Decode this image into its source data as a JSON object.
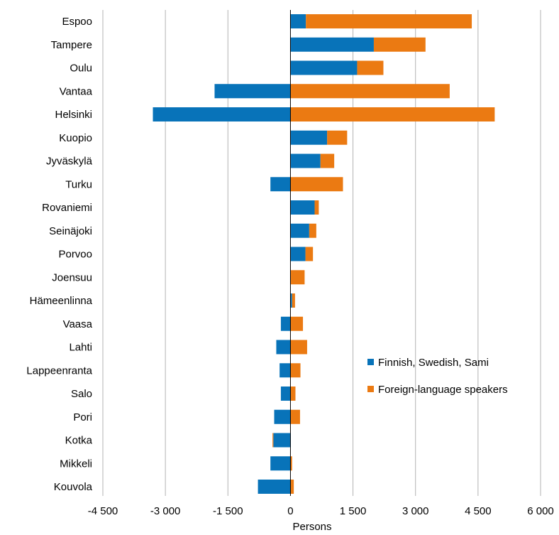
{
  "chart_data": {
    "type": "bar",
    "orientation": "horizontal",
    "stacked": true,
    "title": "",
    "xlabel": "Persons",
    "ylabel": "",
    "xlim": [
      -4500,
      6000
    ],
    "xticks": [
      -4500,
      -3000,
      -1500,
      0,
      1500,
      3000,
      4500,
      6000
    ],
    "xtick_labels": [
      "-4 500",
      "-3 000",
      "-1 500",
      "0",
      "1 500",
      "3 000",
      "4 500",
      "6 000"
    ],
    "grid": "vertical",
    "legend_position": "right",
    "categories": [
      "Espoo",
      "Tampere",
      "Oulu",
      "Vantaa",
      "Helsinki",
      "Kuopio",
      "Jyväskylä",
      "Turku",
      "Rovaniemi",
      "Seinäjoki",
      "Porvoo",
      "Joensuu",
      "Hämeenlinna",
      "Vaasa",
      "Lahti",
      "Lappeenranta",
      "Salo",
      "Pori",
      "Kotka",
      "Mikkeli",
      "Kouvola"
    ],
    "series": [
      {
        "name": "Finnish, Swedish, Sami",
        "color": "#0873b9",
        "values": [
          370,
          2000,
          1600,
          -1820,
          -3300,
          880,
          720,
          -480,
          580,
          450,
          360,
          0,
          40,
          -230,
          -340,
          -260,
          -230,
          -390,
          -410,
          -480,
          -780
        ]
      },
      {
        "name": "Foreign-language speakers",
        "color": "#eb7a12",
        "values": [
          3980,
          1240,
          630,
          3820,
          4900,
          480,
          330,
          1260,
          100,
          170,
          180,
          340,
          70,
          300,
          400,
          240,
          120,
          230,
          -20,
          40,
          80
        ]
      }
    ]
  }
}
